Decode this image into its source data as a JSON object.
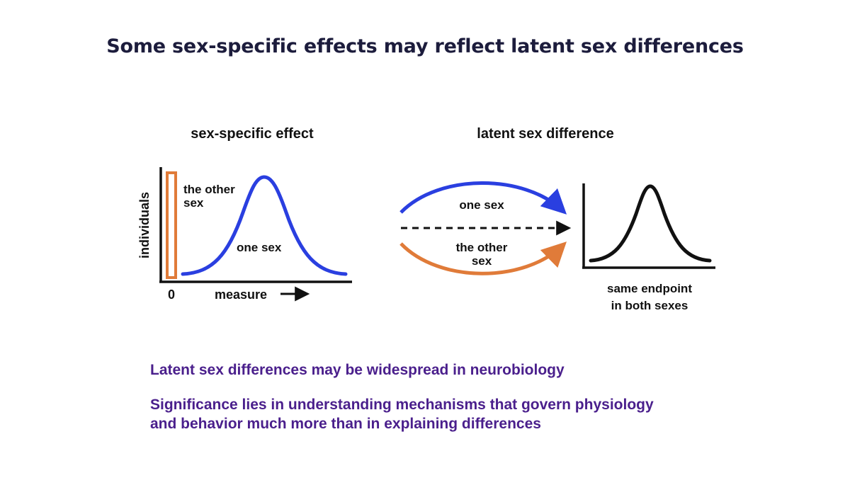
{
  "title": "Some sex-specific effects may reflect latent sex differences",
  "left_panel": {
    "heading": "sex-specific effect",
    "y_axis_label": "individuals",
    "x_axis_label": "measure",
    "zero_tick": "0",
    "other_sex_label_line1": "the other",
    "other_sex_label_line2": "sex",
    "one_sex_label": "one sex"
  },
  "right_panel": {
    "heading": "latent sex difference",
    "top_arrow_label": "one sex",
    "bottom_arrow_label_line1": "the other",
    "bottom_arrow_label_line2": "sex",
    "endpoint_label_line1": "same endpoint",
    "endpoint_label_line2": "in both sexes"
  },
  "bullets": {
    "first": "Latent sex differences may be widespread in neurobiology",
    "second_line1": "Significance lies in understanding mechanisms that govern physiology",
    "second_line2": "and behavior much more than in explaining differences"
  },
  "colors": {
    "title": "#1c1c3c",
    "blue_curve": "#2a3fe0",
    "orange_bar": "#e07b39",
    "bullet_text": "#4a1f8c",
    "black": "#111111"
  }
}
